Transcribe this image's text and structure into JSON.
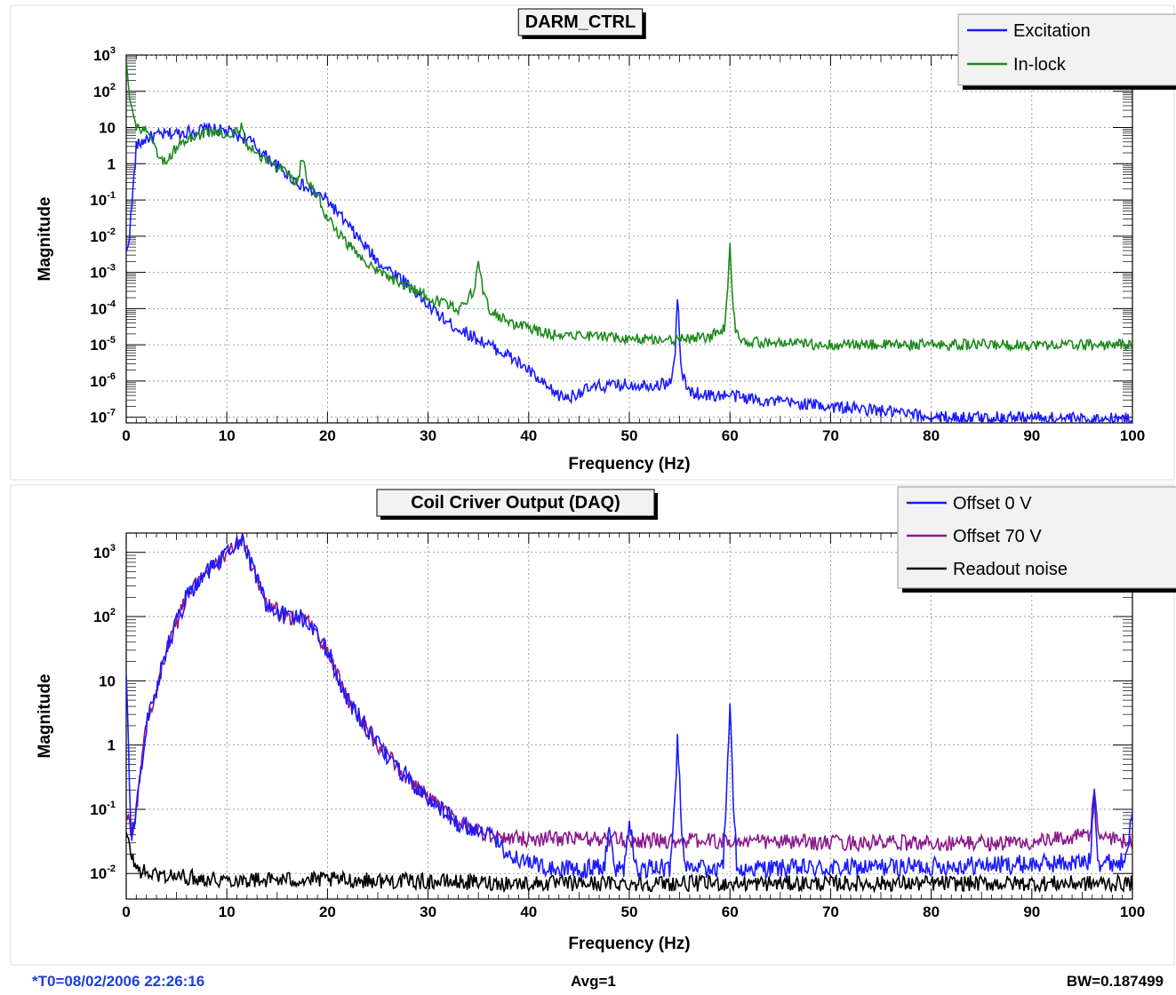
{
  "chart_data": [
    {
      "type": "line",
      "title": "DARM_CTRL",
      "xlabel": "Frequency (Hz)",
      "ylabel": "Magnitude",
      "yscale": "log",
      "xlim": [
        0,
        100
      ],
      "ylim": [
        7e-08,
        1000
      ],
      "grid": true,
      "legend_position": "top-right",
      "x_ticks": [
        "0",
        "10",
        "20",
        "30",
        "40",
        "50",
        "60",
        "70",
        "80",
        "90",
        "100"
      ],
      "y_ticks": [
        {
          "v": 1e-07,
          "base": "10",
          "exp": "-7"
        },
        {
          "v": 1e-06,
          "base": "10",
          "exp": "-6"
        },
        {
          "v": 1e-05,
          "base": "10",
          "exp": "-5"
        },
        {
          "v": 0.0001,
          "base": "10",
          "exp": "-4"
        },
        {
          "v": 0.001,
          "base": "10",
          "exp": "-3"
        },
        {
          "v": 0.01,
          "base": "10",
          "exp": "-2"
        },
        {
          "v": 0.1,
          "base": "10",
          "exp": "-1"
        },
        {
          "v": 1,
          "base": "1",
          "exp": ""
        },
        {
          "v": 10,
          "base": "10",
          "exp": ""
        },
        {
          "v": 100,
          "base": "10",
          "exp": "2"
        },
        {
          "v": 1000,
          "base": "10",
          "exp": "3"
        }
      ],
      "series": [
        {
          "name": "Excitation",
          "color": "#1a1aff",
          "noise": 0.35,
          "x": [
            0,
            0.3,
            0.6,
            1,
            2,
            3,
            5,
            8,
            10,
            11,
            12,
            14,
            16,
            18,
            20,
            22,
            25,
            28,
            30,
            32,
            34,
            36,
            38,
            40,
            41,
            42,
            43,
            44,
            45,
            47,
            50,
            53,
            54,
            54.5,
            54.8,
            55.1,
            55.5,
            56,
            58,
            60,
            63,
            66,
            70,
            75,
            80,
            85,
            90,
            95,
            100
          ],
          "y": [
            0.003,
            0.01,
            0.1,
            3,
            5,
            6,
            7,
            9,
            8,
            6,
            5,
            1.5,
            0.5,
            0.2,
            0.1,
            0.02,
            0.002,
            0.0005,
            0.00012,
            4e-05,
            2e-05,
            1e-05,
            5e-06,
            2e-06,
            1e-06,
            6e-07,
            4e-07,
            3.5e-07,
            5e-07,
            7e-07,
            8e-07,
            8e-07,
            9e-07,
            3e-06,
            0.00025,
            3e-06,
            9e-07,
            5e-07,
            4e-07,
            4e-07,
            3e-07,
            2.5e-07,
            2e-07,
            1.5e-07,
            1e-07,
            1e-07,
            1e-07,
            9e-08,
            9e-08
          ]
        },
        {
          "name": "In-lock",
          "color": "#1e8a1e",
          "noise": 0.3,
          "x": [
            0,
            0.3,
            0.6,
            1,
            2,
            3,
            4,
            5,
            7,
            9,
            10,
            11,
            11.5,
            12,
            13,
            15,
            17,
            17.5,
            18,
            19,
            20,
            22,
            25,
            28,
            30,
            33,
            34.5,
            35,
            35.5,
            36,
            38,
            40,
            42,
            44,
            46,
            50,
            55,
            58,
            59.5,
            59.8,
            60,
            60.2,
            60.5,
            61,
            62,
            65,
            70,
            80,
            90,
            100
          ],
          "y": [
            900,
            100,
            30,
            10,
            8,
            2,
            1,
            3,
            6,
            8,
            5,
            8,
            12,
            3,
            2,
            0.8,
            0.3,
            1.5,
            0.3,
            0.15,
            0.03,
            0.006,
            0.001,
            0.0004,
            0.0002,
            0.0001,
            0.0003,
            0.0015,
            0.0003,
            0.0001,
            4e-05,
            3e-05,
            2e-05,
            2e-05,
            1.8e-05,
            1.5e-05,
            1.4e-05,
            1.6e-05,
            3e-05,
            0.0004,
            0.0045,
            0.0004,
            3e-05,
            1.5e-05,
            1.2e-05,
            1.1e-05,
            1e-05,
            1e-05,
            1e-05,
            1e-05
          ]
        }
      ]
    },
    {
      "type": "line",
      "title": "Coil Criver Output (DAQ)",
      "xlabel": "Frequency (Hz)",
      "ylabel": "Magnitude",
      "yscale": "log",
      "xlim": [
        0,
        100
      ],
      "ylim": [
        0.004,
        2000
      ],
      "grid": true,
      "legend_position": "top-right",
      "x_ticks": [
        "0",
        "10",
        "20",
        "30",
        "40",
        "50",
        "60",
        "70",
        "80",
        "90",
        "100"
      ],
      "y_ticks": [
        {
          "v": 0.01,
          "base": "10",
          "exp": "-2"
        },
        {
          "v": 0.1,
          "base": "10",
          "exp": "-1"
        },
        {
          "v": 1,
          "base": "1",
          "exp": ""
        },
        {
          "v": 10,
          "base": "10",
          "exp": ""
        },
        {
          "v": 100,
          "base": "10",
          "exp": "2"
        },
        {
          "v": 1000,
          "base": "10",
          "exp": "3"
        }
      ],
      "series": [
        {
          "name": "Readout noise",
          "color": "#000000",
          "noise": 0.25,
          "x": [
            0,
            0.5,
            1,
            2,
            5,
            10,
            20,
            30,
            40,
            50,
            60,
            70,
            80,
            90,
            100
          ],
          "y": [
            0.04,
            0.02,
            0.012,
            0.01,
            0.009,
            0.008,
            0.008,
            0.0075,
            0.007,
            0.007,
            0.007,
            0.007,
            0.007,
            0.007,
            0.007
          ]
        },
        {
          "name": "Offset 70 V",
          "color": "#8b1a8b",
          "noise": 0.25,
          "x": [
            0,
            0.5,
            1,
            2,
            4,
            6,
            8,
            10,
            11.5,
            12.5,
            14,
            16,
            18,
            20,
            22,
            25,
            28,
            30,
            33,
            36,
            38,
            40,
            45,
            50,
            60,
            70,
            80,
            90,
            95.8,
            96.2,
            96.6,
            100
          ],
          "y": [
            0.1,
            0.04,
            0.1,
            2,
            30,
            200,
            500,
            900,
            1800,
            600,
            150,
            100,
            90,
            30,
            5,
            1,
            0.3,
            0.15,
            0.06,
            0.04,
            0.035,
            0.035,
            0.035,
            0.033,
            0.032,
            0.03,
            0.03,
            0.03,
            0.04,
            0.2,
            0.04,
            0.03
          ]
        },
        {
          "name": "Offset 0 V",
          "color": "#1a1aff",
          "noise": 0.3,
          "x": [
            0,
            0.5,
            1,
            2,
            4,
            6,
            8,
            10,
            11.5,
            12.5,
            14,
            16,
            18,
            20,
            22,
            25,
            28,
            30,
            33,
            36,
            38,
            40,
            42,
            47.5,
            48,
            48.5,
            49.5,
            50,
            50.5,
            54,
            54.5,
            54.8,
            55.1,
            55.5,
            59.3,
            59.7,
            60,
            60.3,
            60.7,
            70,
            80,
            90,
            95.8,
            96.2,
            96.6,
            99,
            100
          ],
          "y": [
            10,
            0.04,
            0.1,
            2,
            30,
            200,
            500,
            900,
            1800,
            600,
            150,
            100,
            90,
            30,
            5,
            1,
            0.3,
            0.15,
            0.06,
            0.04,
            0.02,
            0.015,
            0.012,
            0.012,
            0.06,
            0.012,
            0.012,
            0.08,
            0.012,
            0.012,
            0.1,
            1.4,
            0.1,
            0.012,
            0.012,
            0.2,
            5.5,
            0.2,
            0.012,
            0.012,
            0.013,
            0.014,
            0.015,
            0.22,
            0.015,
            0.015,
            0.07
          ]
        }
      ]
    }
  ],
  "footer": {
    "t0": "*T0=08/02/2006 22:26:16",
    "avg": "Avg=1",
    "bw": "BW=0.187499"
  }
}
